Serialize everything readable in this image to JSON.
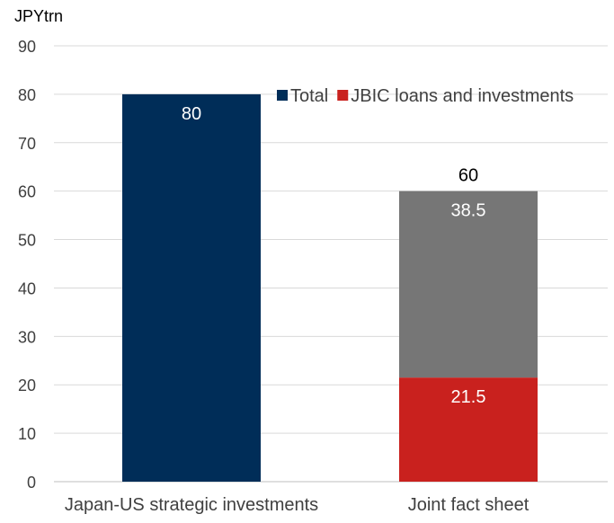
{
  "chart_data": {
    "type": "bar",
    "stacked": true,
    "ylabel": "JPYtrn",
    "ylim": [
      0,
      90
    ],
    "yticks": [
      0,
      10,
      20,
      30,
      40,
      50,
      60,
      70,
      80,
      90
    ],
    "grid": true,
    "legend_position": "top-right",
    "categories": [
      "Japan-US strategic investments",
      "Joint fact sheet"
    ],
    "legend": [
      {
        "name": "Total",
        "color": "#002d58"
      },
      {
        "name": "JBIC loans and investments",
        "color": "#c9211e"
      }
    ],
    "bars": [
      {
        "category": "Japan-US strategic investments",
        "segments": [
          {
            "value": 80,
            "label": "80",
            "color": "#002d58"
          }
        ]
      },
      {
        "category": "Joint fact sheet",
        "total_label": "60",
        "segments": [
          {
            "value": 21.5,
            "label": "21.5",
            "color": "#c9211e"
          },
          {
            "value": 38.5,
            "label": "38.5",
            "color": "#767676"
          }
        ]
      }
    ]
  }
}
